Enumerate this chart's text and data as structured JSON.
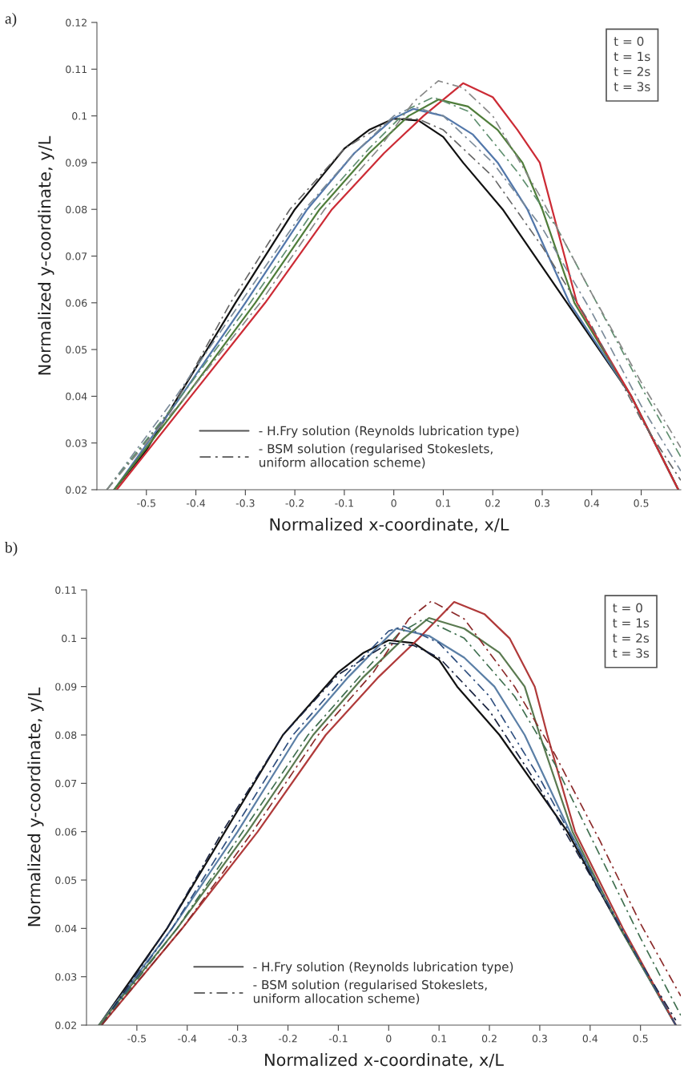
{
  "chart_data": [
    {
      "type": "line",
      "title": "a)",
      "xlabel": "Normalized x-coordinate, x/L",
      "ylabel": "Normalized y-coordinate, y/L",
      "xlim": [
        -0.6,
        0.58
      ],
      "ylim": [
        0.02,
        0.12
      ],
      "xticks": [
        -0.5,
        -0.4,
        -0.3,
        -0.2,
        -0.1,
        0,
        0.1,
        0.2,
        0.3,
        0.4,
        0.5
      ],
      "yticks": [
        0.02,
        0.03,
        0.04,
        0.05,
        0.06,
        0.07,
        0.08,
        0.09,
        0.1,
        0.11,
        0.12
      ],
      "grid": false,
      "legend": false,
      "annotations": [
        "t = 0",
        "t = 1s",
        "t = 2s",
        "t = 3s",
        "- H.Fry solution (Reynolds lubrication type)",
        "- BSM solution (regularised Stokeslets,\nuniform allocation scheme)"
      ],
      "series": [
        {
          "color": "#111111",
          "line_style": "solid",
          "x": [
            -0.565,
            -0.5,
            -0.435,
            -0.32,
            -0.2,
            -0.1,
            -0.05,
            0,
            0.05,
            0.1,
            0.14,
            0.22,
            0.35,
            0.48,
            0.575
          ],
          "values": [
            0.02,
            0.0285,
            0.04,
            0.06,
            0.08,
            0.093,
            0.097,
            0.0994,
            0.099,
            0.0955,
            0.09,
            0.08,
            0.06,
            0.04,
            0.02
          ]
        },
        {
          "color": "#5277aa",
          "line_style": "solid",
          "x": [
            -0.565,
            -0.43,
            -0.3,
            -0.175,
            -0.08,
            0,
            0.04,
            0.1,
            0.16,
            0.21,
            0.27,
            0.355,
            0.48,
            0.575
          ],
          "values": [
            0.02,
            0.04,
            0.06,
            0.08,
            0.092,
            0.0995,
            0.1015,
            0.1,
            0.096,
            0.09,
            0.08,
            0.06,
            0.04,
            0.02
          ]
        },
        {
          "color": "#4f7d3a",
          "line_style": "solid",
          "x": [
            -0.565,
            -0.42,
            -0.28,
            -0.15,
            -0.05,
            0.03,
            0.09,
            0.15,
            0.21,
            0.26,
            0.3,
            0.365,
            0.48,
            0.575
          ],
          "values": [
            0.02,
            0.04,
            0.06,
            0.08,
            0.092,
            0.1,
            0.1035,
            0.102,
            0.097,
            0.09,
            0.08,
            0.06,
            0.04,
            0.02
          ]
        },
        {
          "color": "#cc2b35",
          "line_style": "solid",
          "x": [
            -0.56,
            -0.41,
            -0.26,
            -0.125,
            -0.02,
            0.06,
            0.14,
            0.2,
            0.25,
            0.295,
            0.32,
            0.37,
            0.48,
            0.575
          ],
          "values": [
            0.02,
            0.04,
            0.06,
            0.08,
            0.092,
            0.1,
            0.107,
            0.104,
            0.097,
            0.09,
            0.08,
            0.06,
            0.04,
            0.02
          ]
        },
        {
          "color": "#666666",
          "line_style": "dashed",
          "x": [
            -0.58,
            -0.45,
            -0.33,
            -0.21,
            -0.1,
            0,
            0.05,
            0.1,
            0.2,
            0.3,
            0.4,
            0.5,
            0.58
          ],
          "values": [
            0.02,
            0.037,
            0.06,
            0.08,
            0.093,
            0.0995,
            0.0993,
            0.097,
            0.087,
            0.072,
            0.055,
            0.035,
            0.022
          ]
        },
        {
          "color": "#7a8a99",
          "line_style": "dashed",
          "x": [
            -0.58,
            -0.44,
            -0.31,
            -0.18,
            -0.08,
            0,
            0.04,
            0.1,
            0.2,
            0.3,
            0.4,
            0.5,
            0.58
          ],
          "values": [
            0.02,
            0.04,
            0.06,
            0.08,
            0.092,
            0.1,
            0.102,
            0.1,
            0.09,
            0.076,
            0.058,
            0.038,
            0.024
          ]
        },
        {
          "color": "#5f8f6f",
          "line_style": "dashed",
          "x": [
            -0.58,
            -0.43,
            -0.29,
            -0.16,
            -0.05,
            0.03,
            0.08,
            0.15,
            0.25,
            0.33,
            0.42,
            0.5,
            0.58
          ],
          "values": [
            0.02,
            0.04,
            0.06,
            0.08,
            0.093,
            0.1015,
            0.104,
            0.101,
            0.088,
            0.076,
            0.058,
            0.042,
            0.027
          ]
        },
        {
          "color": "#888888",
          "line_style": "dashed",
          "x": [
            -0.58,
            -0.42,
            -0.27,
            -0.14,
            -0.03,
            0.04,
            0.09,
            0.14,
            0.2,
            0.3,
            0.4,
            0.5,
            0.58
          ],
          "values": [
            0.02,
            0.04,
            0.06,
            0.08,
            0.093,
            0.103,
            0.1075,
            0.106,
            0.1,
            0.082,
            0.062,
            0.043,
            0.029
          ]
        }
      ]
    },
    {
      "type": "line",
      "title": "b)",
      "xlabel": "Normalized x-coordinate, x/L",
      "ylabel": "Normalized y-coordinate, y/L",
      "xlim": [
        -0.6,
        0.58
      ],
      "ylim": [
        0.02,
        0.11
      ],
      "xticks": [
        -0.5,
        -0.4,
        -0.3,
        -0.2,
        -0.1,
        0,
        0.1,
        0.2,
        0.3,
        0.4,
        0.5
      ],
      "yticks": [
        0.02,
        0.03,
        0.04,
        0.05,
        0.06,
        0.07,
        0.08,
        0.09,
        0.1,
        0.11
      ],
      "grid": false,
      "legend": false,
      "annotations": [
        "t = 0",
        "t = 1s",
        "t = 2s",
        "t = 3s",
        "- H.Fry solution (Reynolds lubrication type)",
        "- BSM solution (regularised Stokeslets,\nuniform allocation scheme)"
      ],
      "series": [
        {
          "color": "#111111",
          "line_style": "solid",
          "x": [
            -0.575,
            -0.44,
            -0.325,
            -0.21,
            -0.1,
            -0.05,
            0,
            0.05,
            0.1,
            0.136,
            0.22,
            0.355,
            0.46,
            0.57
          ],
          "values": [
            0.02,
            0.04,
            0.06,
            0.08,
            0.093,
            0.097,
            0.0996,
            0.099,
            0.0955,
            0.09,
            0.08,
            0.06,
            0.04,
            0.02
          ]
        },
        {
          "color": "#5b7fa6",
          "line_style": "solid",
          "x": [
            -0.575,
            -0.43,
            -0.3,
            -0.18,
            -0.08,
            0,
            0.015,
            0.08,
            0.15,
            0.21,
            0.27,
            0.36,
            0.46,
            0.57
          ],
          "values": [
            0.02,
            0.04,
            0.06,
            0.08,
            0.092,
            0.1005,
            0.102,
            0.1005,
            0.096,
            0.09,
            0.08,
            0.06,
            0.04,
            0.02
          ]
        },
        {
          "color": "#5a7a50",
          "line_style": "solid",
          "x": [
            -0.575,
            -0.42,
            -0.28,
            -0.15,
            -0.05,
            0.03,
            0.08,
            0.15,
            0.22,
            0.27,
            0.3,
            0.365,
            0.46,
            0.57
          ],
          "values": [
            0.02,
            0.04,
            0.06,
            0.08,
            0.092,
            0.1,
            0.1042,
            0.102,
            0.097,
            0.09,
            0.08,
            0.06,
            0.04,
            0.02
          ]
        },
        {
          "color": "#b03a3a",
          "line_style": "solid",
          "x": [
            -0.57,
            -0.41,
            -0.26,
            -0.125,
            -0.02,
            0.06,
            0.13,
            0.19,
            0.24,
            0.29,
            0.315,
            0.37,
            0.465,
            0.57
          ],
          "values": [
            0.02,
            0.04,
            0.06,
            0.08,
            0.092,
            0.1,
            0.1075,
            0.105,
            0.1,
            0.09,
            0.08,
            0.06,
            0.04,
            0.02
          ]
        },
        {
          "color": "#1a2440",
          "line_style": "dashed",
          "x": [
            -0.57,
            -0.44,
            -0.33,
            -0.21,
            -0.1,
            0,
            0.05,
            0.1,
            0.2,
            0.3,
            0.4,
            0.5,
            0.57
          ],
          "values": [
            0.02,
            0.04,
            0.06,
            0.08,
            0.0925,
            0.099,
            0.0985,
            0.096,
            0.085,
            0.069,
            0.051,
            0.033,
            0.021
          ]
        },
        {
          "color": "#2f4f7f",
          "line_style": "dashed",
          "x": [
            -0.57,
            -0.43,
            -0.31,
            -0.19,
            -0.08,
            0,
            0.03,
            0.1,
            0.2,
            0.3,
            0.4,
            0.5,
            0.57
          ],
          "values": [
            0.02,
            0.04,
            0.06,
            0.08,
            0.093,
            0.1015,
            0.1025,
            0.099,
            0.088,
            0.071,
            0.052,
            0.033,
            0.02
          ]
        },
        {
          "color": "#3f6f4f",
          "line_style": "dashed",
          "x": [
            -0.57,
            -0.42,
            -0.29,
            -0.16,
            -0.05,
            0.02,
            0.07,
            0.15,
            0.25,
            0.33,
            0.42,
            0.5,
            0.58
          ],
          "values": [
            0.02,
            0.04,
            0.06,
            0.08,
            0.093,
            0.101,
            0.104,
            0.1,
            0.088,
            0.074,
            0.055,
            0.038,
            0.022
          ]
        },
        {
          "color": "#8b2a2a",
          "line_style": "dashed",
          "x": [
            -0.57,
            -0.41,
            -0.27,
            -0.14,
            -0.03,
            0.04,
            0.085,
            0.15,
            0.25,
            0.33,
            0.42,
            0.5,
            0.58
          ],
          "values": [
            0.02,
            0.04,
            0.06,
            0.08,
            0.093,
            0.104,
            0.1077,
            0.104,
            0.09,
            0.076,
            0.058,
            0.041,
            0.026
          ]
        }
      ]
    }
  ]
}
